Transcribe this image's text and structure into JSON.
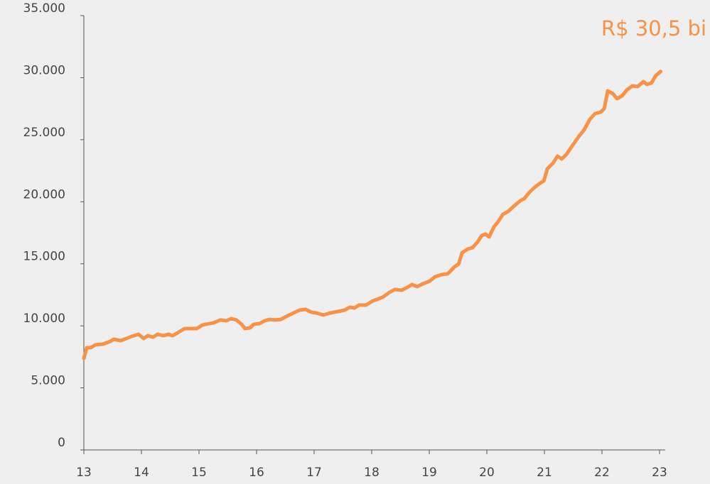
{
  "chart_data": {
    "type": "line",
    "annotation": "R$ 30,5 bi",
    "annotation_color": "#f79246",
    "x": [
      13.0,
      13.05,
      13.12,
      13.2,
      13.33,
      13.46,
      13.52,
      13.64,
      13.74,
      13.83,
      13.95,
      14.04,
      14.11,
      14.2,
      14.28,
      14.38,
      14.47,
      14.54,
      14.63,
      14.75,
      14.88,
      14.96,
      15.06,
      15.25,
      15.37,
      15.47,
      15.56,
      15.65,
      15.74,
      15.8,
      15.89,
      15.95,
      16.05,
      16.14,
      16.23,
      16.32,
      16.42,
      16.54,
      16.67,
      16.75,
      16.85,
      16.95,
      17.04,
      17.16,
      17.28,
      17.41,
      17.53,
      17.62,
      17.7,
      17.78,
      17.9,
      18.02,
      18.19,
      18.31,
      18.4,
      18.52,
      18.62,
      18.7,
      18.79,
      18.89,
      19.01,
      19.1,
      19.22,
      19.32,
      19.44,
      19.51,
      19.57,
      19.67,
      19.75,
      19.84,
      19.91,
      19.98,
      20.04,
      20.12,
      20.19,
      20.28,
      20.37,
      20.49,
      20.58,
      20.65,
      20.74,
      20.83,
      20.93,
      20.99,
      21.05,
      21.15,
      21.23,
      21.3,
      21.38,
      21.48,
      21.6,
      21.69,
      21.79,
      21.88,
      21.98,
      22.04,
      22.1,
      22.19,
      22.26,
      22.35,
      22.43,
      22.53,
      22.62,
      22.72,
      22.78,
      22.86,
      22.93,
      23.02
    ],
    "series": [
      {
        "color": "#f79246",
        "values": [
          7380,
          8240,
          8240,
          8470,
          8520,
          8750,
          8920,
          8810,
          8980,
          9150,
          9320,
          8980,
          9210,
          9090,
          9320,
          9210,
          9320,
          9210,
          9440,
          9780,
          9780,
          9780,
          10070,
          10240,
          10470,
          10410,
          10580,
          10470,
          10120,
          9780,
          9840,
          10120,
          10180,
          10410,
          10520,
          10470,
          10520,
          10810,
          11100,
          11270,
          11330,
          11100,
          11040,
          10870,
          11040,
          11150,
          11270,
          11500,
          11440,
          11670,
          11670,
          12010,
          12300,
          12700,
          12930,
          12870,
          13100,
          13330,
          13160,
          13390,
          13610,
          13960,
          14130,
          14190,
          14760,
          14990,
          15900,
          16190,
          16300,
          16760,
          17270,
          17390,
          17160,
          17960,
          18360,
          18990,
          19220,
          19730,
          20080,
          20250,
          20760,
          21160,
          21510,
          21680,
          22650,
          23110,
          23680,
          23450,
          23800,
          24480,
          25280,
          25800,
          26650,
          27110,
          27230,
          27510,
          28940,
          28710,
          28310,
          28540,
          29000,
          29340,
          29280,
          29680,
          29460,
          29570,
          30140,
          30500
        ]
      }
    ],
    "xlim": [
      13,
      23.05
    ],
    "xticks": [
      13,
      14,
      15,
      16,
      17,
      18,
      19,
      20,
      21,
      22,
      23
    ],
    "ylim": [
      0,
      35000
    ],
    "yticks": [
      0,
      {
        "value": 5000,
        "label": "5.000"
      },
      {
        "value": 10000,
        "label": "10.000"
      },
      {
        "value": 15000,
        "label": "15.000"
      },
      {
        "value": 20000,
        "label": "20.000"
      },
      {
        "value": 25000,
        "label": "25.000"
      },
      {
        "value": 30000,
        "label": "30.000"
      },
      {
        "value": 35000,
        "label": "35.000"
      }
    ],
    "grid": false
  }
}
